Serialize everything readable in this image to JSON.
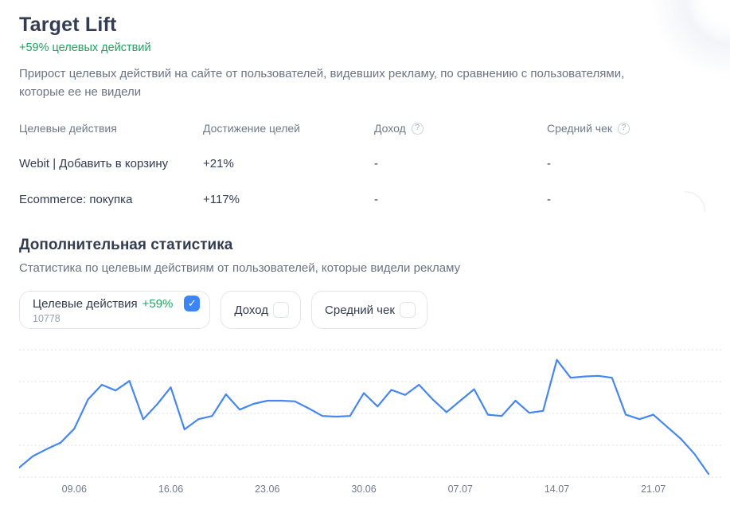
{
  "header": {
    "title": "Target Lift",
    "lift_summary": "+59% целевых действий",
    "description": "Прирост целевых действий на сайте от пользователей, видевших рекламу, по сравнению с пользователями, которые ее не видели"
  },
  "goals_table": {
    "columns": [
      {
        "label": "Целевые действия",
        "has_help": false
      },
      {
        "label": "Достижение целей",
        "has_help": false
      },
      {
        "label": "Доход",
        "has_help": true
      },
      {
        "label": "Средний чек",
        "has_help": true
      }
    ],
    "rows": [
      {
        "goal": "Webit | Добавить в корзину",
        "lift": "+21%",
        "revenue": "-",
        "avg_check": "-"
      },
      {
        "goal": "Ecommerce: покупка",
        "lift": "+117%",
        "revenue": "-",
        "avg_check": "-"
      }
    ]
  },
  "extra_stats": {
    "title": "Дополнительная статистика",
    "subtitle": "Статистика по целевым действиям от пользователей, которые видели рекламу",
    "filters": [
      {
        "label": "Целевые действия",
        "lift": "+59%",
        "count": "10778",
        "checked": true
      },
      {
        "label": "Доход",
        "checked": false
      },
      {
        "label": "Средний чек",
        "checked": false
      }
    ]
  },
  "icons": {
    "help_glyph": "?",
    "checkmark_glyph": "✓"
  },
  "colors": {
    "accent_blue": "#3d85f4",
    "positive_green": "#1fa363",
    "text_dark": "#333c51",
    "text_gray": "#6a7383",
    "gridline": "#d9dde5"
  },
  "chart_data": {
    "type": "line",
    "title": "",
    "series_name": "Целевые действия",
    "x_tick_labels": [
      "09.06",
      "16.06",
      "23.06",
      "30.06",
      "07.07",
      "14.07",
      "21.07"
    ],
    "x_tick_indices": [
      4,
      11,
      18,
      25,
      32,
      39,
      46
    ],
    "values": [
      7.5,
      16.5,
      22,
      27,
      38,
      61,
      72.5,
      68,
      75.5,
      45.5,
      57,
      70.5,
      37.5,
      45.5,
      48,
      65,
      53,
      57.5,
      60,
      60,
      59.5,
      54,
      48,
      47.5,
      48,
      66,
      55.5,
      68.5,
      64.5,
      72.5,
      61,
      51,
      60,
      69,
      49,
      48,
      60,
      50.5,
      52,
      92,
      78,
      79,
      79.5,
      78,
      49,
      45.5,
      49,
      39.5,
      30,
      18,
      2.5
    ],
    "ylim": [
      0,
      100
    ],
    "y_axis_labels_visible": false,
    "gridlines": 5,
    "grid_style": "horizontal dotted",
    "legend": "none",
    "line_color": "#4687ee"
  }
}
